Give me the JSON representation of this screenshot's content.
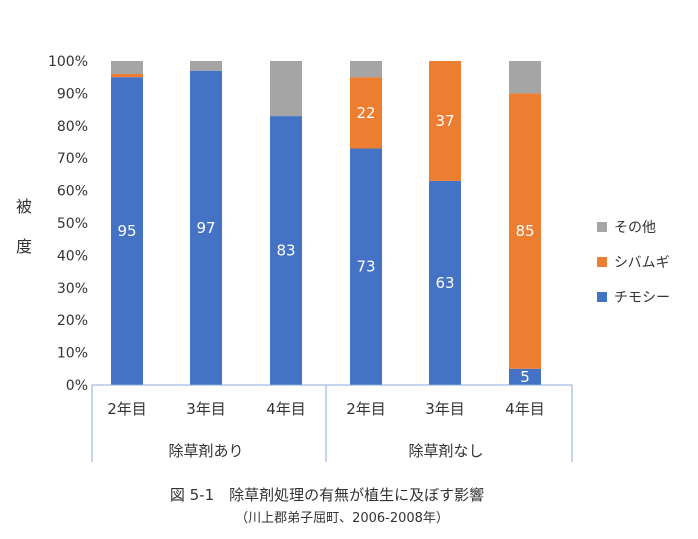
{
  "chart_data": {
    "type": "bar",
    "stacked": true,
    "normalized": true,
    "categories": [
      "2年目",
      "3年目",
      "4年目",
      "2年目",
      "3年目",
      "4年目"
    ],
    "groups": [
      {
        "label": "除草剤あり",
        "categories": [
          "2年目",
          "3年目",
          "4年目"
        ]
      },
      {
        "label": "除草剤なし",
        "categories": [
          "2年目",
          "3年目",
          "4年目"
        ]
      }
    ],
    "series": [
      {
        "name": "チモシー",
        "color": "#4472c4",
        "values": [
          95,
          97,
          83,
          73,
          63,
          5
        ],
        "labels": [
          "95",
          "97",
          "83",
          "73",
          "63",
          "5"
        ]
      },
      {
        "name": "シバムギ",
        "color": "#ed7d31",
        "values": [
          1,
          0,
          0,
          22,
          37,
          85
        ],
        "labels": [
          "",
          "",
          "",
          "22",
          "37",
          "85"
        ]
      },
      {
        "name": "その他",
        "color": "#a5a5a5",
        "values": [
          4,
          3,
          17,
          5,
          0,
          10
        ],
        "labels": [
          "",
          "",
          "",
          "",
          "",
          ""
        ]
      }
    ],
    "yticks": [
      "0%",
      "10%",
      "20%",
      "30%",
      "40%",
      "50%",
      "60%",
      "70%",
      "80%",
      "90%",
      "100%"
    ],
    "ylim": [
      0,
      100
    ],
    "ylabel": "被度",
    "legend_position": "right",
    "legend_order": [
      "その他",
      "シバムギ",
      "チモシー"
    ],
    "grid": false,
    "caption": "図 5-1　除草剤処理の有無が植生に及ぼす影響",
    "subcaption": "（川上郡弟子屈町、2006-2008年）"
  }
}
